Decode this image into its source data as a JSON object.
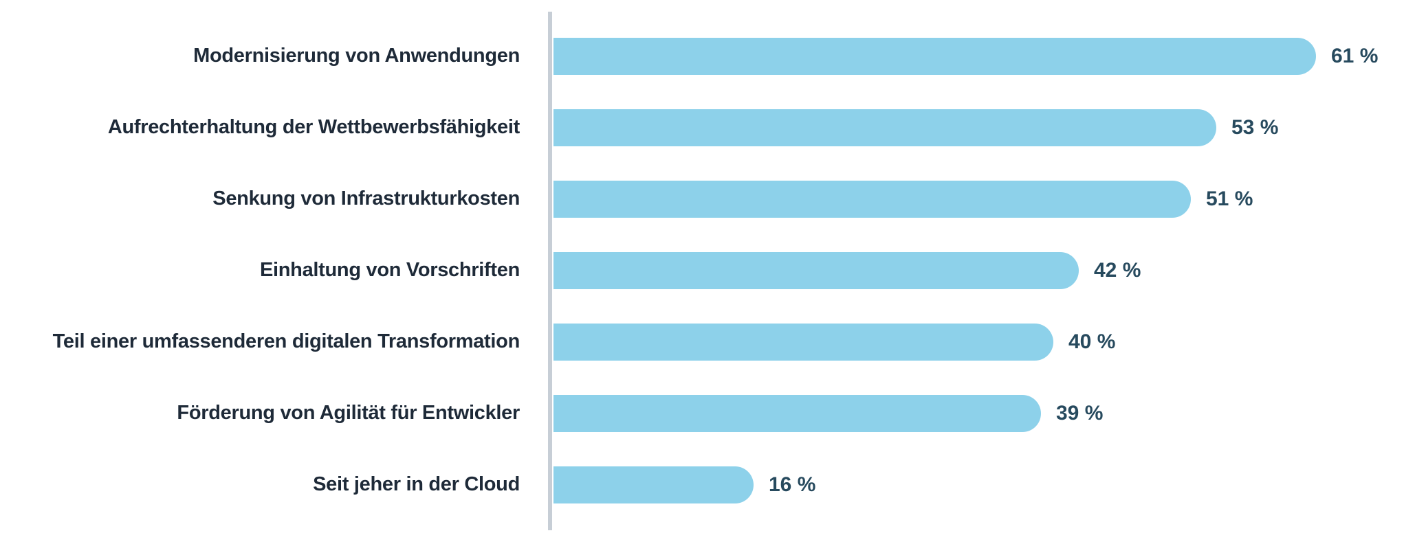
{
  "chart_data": {
    "type": "bar",
    "orientation": "horizontal",
    "title": "",
    "xlabel": "",
    "ylabel": "",
    "grid": false,
    "legend": null,
    "categories": [
      "Modernisierung von Anwendungen",
      "Aufrechterhaltung der Wettbewerbsfähigkeit",
      "Senkung von Infrastrukturkosten",
      "Einhaltung von Vorschriften",
      "Teil einer umfassenderen digitalen Transformation",
      "Förderung von Agilität für Entwickler",
      "Seit jeher in der Cloud"
    ],
    "values": [
      61,
      53,
      51,
      42,
      40,
      39,
      16
    ],
    "value_labels": [
      "61 %",
      "53 %",
      "51 %",
      "42 %",
      "40 %",
      "39 %",
      "16 %"
    ],
    "unit": "%",
    "colors": {
      "bar": "#8dd1ea",
      "category_label": "#1e2a38",
      "value_label": "#274a5e",
      "axis_line": "#c7ced6",
      "background": "#ffffff"
    }
  }
}
